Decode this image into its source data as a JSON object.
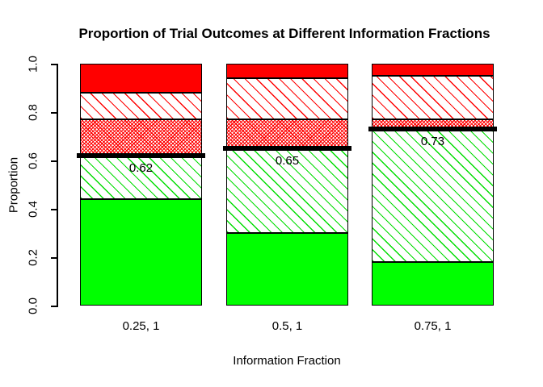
{
  "chart_data": {
    "type": "bar",
    "stacked": true,
    "title": "Proportion of Trial Outcomes at Different Information Fractions",
    "xlabel": "Information Fraction",
    "ylabel": "Proportion",
    "ylim": [
      0,
      1
    ],
    "ytick_labels": [
      "0.0",
      "0.2",
      "0.4",
      "0.6",
      "0.8",
      "1.0"
    ],
    "categories": [
      "0.25, 1",
      "0.5, 1",
      "0.75, 1"
    ],
    "grid": false,
    "legend": "none",
    "series": [
      {
        "name": "solid green segment",
        "style": "solid_green",
        "color": "#00ff00",
        "values": [
          0.44,
          0.3,
          0.18
        ]
      },
      {
        "name": "green hatched segment",
        "style": "green_hatch",
        "color": "#00dd00",
        "values": [
          0.18,
          0.35,
          0.55
        ]
      },
      {
        "name": "red dense hatched segment",
        "style": "red_dense_hatch",
        "color": "#ff0000",
        "values": [
          0.15,
          0.12,
          0.04
        ]
      },
      {
        "name": "red hatched segment",
        "style": "red_hatch",
        "color": "#ff0000",
        "values": [
          0.11,
          0.17,
          0.18
        ]
      },
      {
        "name": "solid red segment",
        "style": "solid_red",
        "color": "#ff0000",
        "values": [
          0.12,
          0.06,
          0.05
        ]
      }
    ],
    "markers": {
      "color": "#000000",
      "values": [
        0.62,
        0.65,
        0.73
      ],
      "labels": [
        "0.62",
        "0.65",
        "0.73"
      ]
    }
  },
  "colors": {
    "background": "#ffffff",
    "axis": "#000000",
    "text": "#000000"
  }
}
